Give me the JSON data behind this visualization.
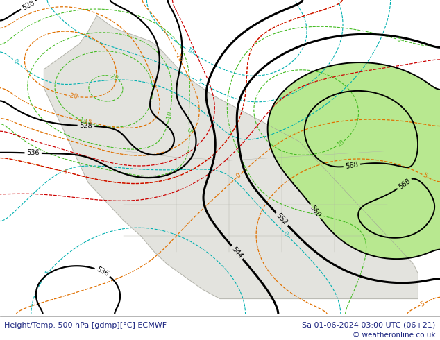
{
  "title_left": "Height/Temp. 500 hPa [gdmp][°C] ECMWF",
  "title_right": "Sa 01-06-2024 03:00 UTC (06+21)",
  "copyright": "© weatheronline.co.uk",
  "bg_color": "#ffffff",
  "footer_color": "#1a237e",
  "fig_width": 6.34,
  "fig_height": 4.9,
  "dpi": 100,
  "green_fill_color": "#b8e890",
  "land_gray": "#c8c8c8",
  "ocean_color": "#f0f0f0"
}
